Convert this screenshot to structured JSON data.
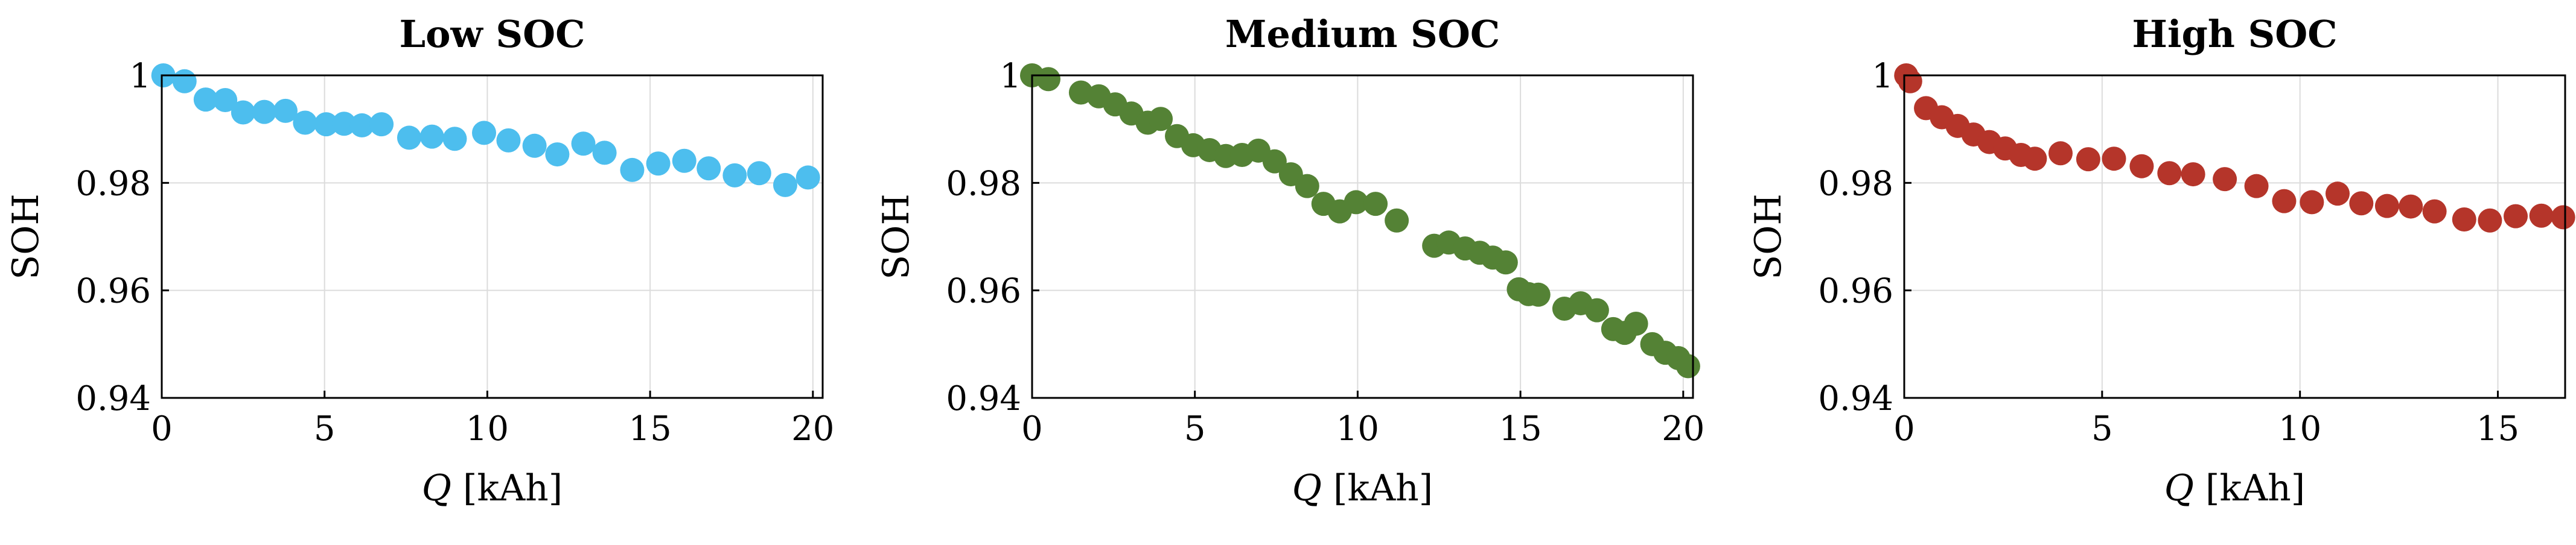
{
  "chart_data": [
    {
      "type": "scatter",
      "title": "Low SOC",
      "xlabel_var": "Q",
      "xlabel_unit": " [kAh]",
      "ylabel": "SOH",
      "xlim": [
        0,
        20.3
      ],
      "ylim": [
        0.94,
        1.0
      ],
      "xticks": [
        0,
        5,
        10,
        15,
        20
      ],
      "xtick_labels": [
        "0",
        "5",
        "10",
        "15",
        "20"
      ],
      "yticks": [
        0.94,
        0.96,
        0.98,
        1.0
      ],
      "ytick_labels": [
        "0.94",
        "0.96",
        "0.98",
        "1"
      ],
      "grid": true,
      "color": "#4DBEEE",
      "series": [
        {
          "x": [
            0.05,
            0.7,
            1.35,
            1.95,
            2.5,
            3.15,
            3.8,
            4.4,
            5.05,
            5.6,
            6.15,
            6.75,
            7.6,
            8.3,
            9.0,
            9.9,
            10.65,
            11.45,
            12.15,
            12.95,
            13.6,
            14.45,
            15.25,
            16.05,
            16.8,
            17.6,
            18.35,
            19.15,
            19.85
          ],
          "y": [
            1.0,
            0.9989,
            0.9955,
            0.9954,
            0.9931,
            0.9932,
            0.9934,
            0.9912,
            0.9909,
            0.991,
            0.9907,
            0.9909,
            0.9884,
            0.9886,
            0.9882,
            0.9893,
            0.9879,
            0.9869,
            0.9853,
            0.9873,
            0.9856,
            0.9824,
            0.9836,
            0.9841,
            0.9827,
            0.9814,
            0.9818,
            0.9796,
            0.981
          ]
        }
      ]
    },
    {
      "type": "scatter",
      "title": "Medium SOC",
      "xlabel_var": "Q",
      "xlabel_unit": " [kAh]",
      "ylabel": "SOH",
      "xlim": [
        0,
        20.3
      ],
      "ylim": [
        0.94,
        1.0
      ],
      "xticks": [
        0,
        5,
        10,
        15,
        20
      ],
      "xtick_labels": [
        "0",
        "5",
        "10",
        "15",
        "20"
      ],
      "yticks": [
        0.94,
        0.96,
        0.98,
        1.0
      ],
      "ytick_labels": [
        "0.94",
        "0.96",
        "0.98",
        "1"
      ],
      "grid": true,
      "color": "#548235",
      "series": [
        {
          "x": [
            0.0,
            0.5,
            1.5,
            2.05,
            2.55,
            3.05,
            3.55,
            3.95,
            4.45,
            4.95,
            5.45,
            5.95,
            6.45,
            6.95,
            7.45,
            7.95,
            8.45,
            8.95,
            9.45,
            9.95,
            10.55,
            11.2,
            12.35,
            12.8,
            13.3,
            13.75,
            14.15,
            14.55,
            14.95,
            15.25,
            15.55,
            16.35,
            16.85,
            17.35,
            17.85,
            18.2,
            18.55,
            19.05,
            19.45,
            19.85,
            20.15
          ],
          "y": [
            1.0,
            0.9993,
            0.9968,
            0.9961,
            0.9946,
            0.9929,
            0.9912,
            0.9919,
            0.9887,
            0.987,
            0.9861,
            0.985,
            0.9852,
            0.986,
            0.984,
            0.9816,
            0.9794,
            0.9761,
            0.9747,
            0.9764,
            0.9761,
            0.973,
            0.9683,
            0.9689,
            0.9678,
            0.967,
            0.9661,
            0.9652,
            0.9602,
            0.9593,
            0.9592,
            0.9566,
            0.9576,
            0.9563,
            0.9528,
            0.9521,
            0.9538,
            0.95,
            0.9484,
            0.9474,
            0.9459
          ]
        }
      ]
    },
    {
      "type": "scatter",
      "title": "High SOC",
      "xlabel_var": "Q",
      "xlabel_unit": " [kAh]",
      "ylabel": "SOH",
      "xlim": [
        0,
        16.7
      ],
      "ylim": [
        0.94,
        1.0
      ],
      "xticks": [
        0,
        5,
        10,
        15
      ],
      "xtick_labels": [
        "0",
        "5",
        "10",
        "15"
      ],
      "yticks": [
        0.94,
        0.96,
        0.98,
        1.0
      ],
      "ytick_labels": [
        "0.94",
        "0.96",
        "0.98",
        "1"
      ],
      "grid": true,
      "color": "#B5352A",
      "series": [
        {
          "x": [
            0.05,
            0.15,
            0.55,
            0.95,
            1.35,
            1.75,
            2.15,
            2.55,
            2.95,
            3.3,
            3.95,
            4.65,
            5.3,
            6.0,
            6.7,
            7.3,
            8.1,
            8.9,
            9.6,
            10.3,
            10.95,
            11.55,
            12.2,
            12.8,
            13.4,
            14.15,
            14.8,
            15.45,
            16.1,
            16.65
          ],
          "y": [
            1.0,
            0.9989,
            0.9939,
            0.9922,
            0.9906,
            0.989,
            0.9876,
            0.9864,
            0.9852,
            0.9845,
            0.9855,
            0.9844,
            0.9845,
            0.9831,
            0.9818,
            0.9816,
            0.9807,
            0.9794,
            0.9766,
            0.9764,
            0.978,
            0.9762,
            0.9757,
            0.9756,
            0.9747,
            0.9732,
            0.973,
            0.9738,
            0.9739,
            0.9736
          ]
        }
      ]
    }
  ]
}
